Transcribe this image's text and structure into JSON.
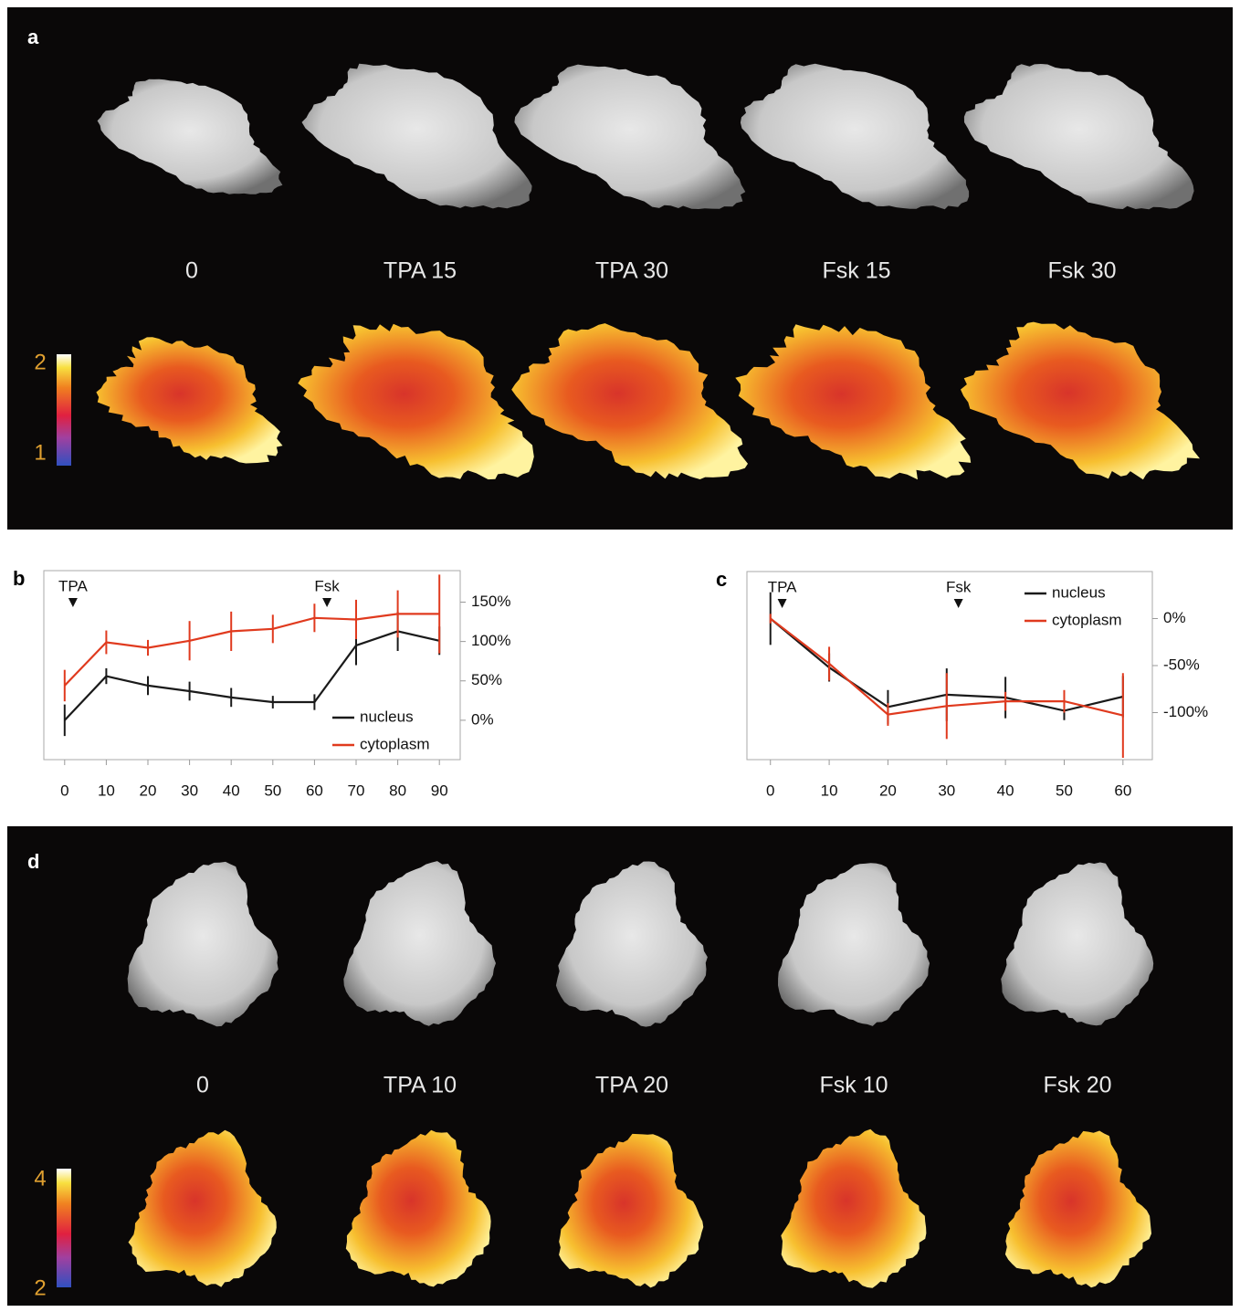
{
  "panels": {
    "a": {
      "label": "a",
      "captions": [
        "0",
        "TPA 15",
        "TPA 30",
        "Fsk 15",
        "Fsk 30"
      ],
      "colorbar": {
        "max": 2,
        "min": 1
      }
    },
    "d": {
      "label": "d",
      "captions": [
        "0",
        "TPA 10",
        "TPA 20",
        "Fsk 10",
        "Fsk 20"
      ],
      "colorbar": {
        "max": 4,
        "min": 2
      }
    }
  },
  "chart_data": [
    {
      "type": "line",
      "label": "b",
      "x": [
        0,
        10,
        20,
        30,
        40,
        50,
        60,
        70,
        80,
        90
      ],
      "xlim": [
        -5,
        95
      ],
      "xticks": [
        0,
        10,
        20,
        30,
        40,
        50,
        60,
        70,
        80,
        90
      ],
      "ylim": [
        -50,
        190
      ],
      "yticks": [
        {
          "value": 0,
          "label": "0%"
        },
        {
          "value": 50,
          "label": "50%"
        },
        {
          "value": 100,
          "label": "100%"
        },
        {
          "value": 150,
          "label": "150%"
        }
      ],
      "legend": "lower right",
      "annotations": [
        {
          "text": "TPA",
          "x": 2
        },
        {
          "text": "Fsk",
          "x": 63
        }
      ],
      "series": [
        {
          "name": "nucleus",
          "color": "#1a1a1a",
          "values": [
            0,
            56,
            44,
            37,
            29,
            23,
            23,
            95,
            113,
            101
          ],
          "errors": [
            20,
            10,
            12,
            12,
            12,
            8,
            10,
            25,
            25,
            18
          ]
        },
        {
          "name": "cytoplasm",
          "color": "#e03a1e",
          "values": [
            44,
            99,
            92,
            101,
            113,
            116,
            130,
            128,
            135,
            135
          ],
          "errors": [
            20,
            15,
            10,
            25,
            25,
            18,
            18,
            25,
            30,
            50
          ]
        }
      ]
    },
    {
      "type": "line",
      "label": "c",
      "x": [
        0,
        10,
        20,
        30,
        40,
        50,
        60
      ],
      "xlim": [
        -4,
        65
      ],
      "xticks": [
        0,
        10,
        20,
        30,
        40,
        50,
        60
      ],
      "ylim": [
        -150,
        50
      ],
      "yticks": [
        {
          "value": 0,
          "label": "0%"
        },
        {
          "value": -50,
          "label": "-50%"
        },
        {
          "value": -100,
          "label": "-100%"
        }
      ],
      "legend": "upper right",
      "annotations": [
        {
          "text": "TPA",
          "x": 2
        },
        {
          "text": "Fsk",
          "x": 32
        }
      ],
      "series": [
        {
          "name": "nucleus",
          "color": "#1a1a1a",
          "values": [
            0,
            -52,
            -94,
            -81,
            -84,
            -98,
            -83
          ],
          "errors": [
            28,
            15,
            18,
            28,
            22,
            10,
            22
          ]
        },
        {
          "name": "cytoplasm",
          "color": "#e03a1e",
          "values": [
            0,
            -48,
            -102,
            -93,
            -88,
            -88,
            -103
          ],
          "errors": [
            5,
            18,
            12,
            35,
            10,
            12,
            45
          ]
        }
      ]
    }
  ]
}
